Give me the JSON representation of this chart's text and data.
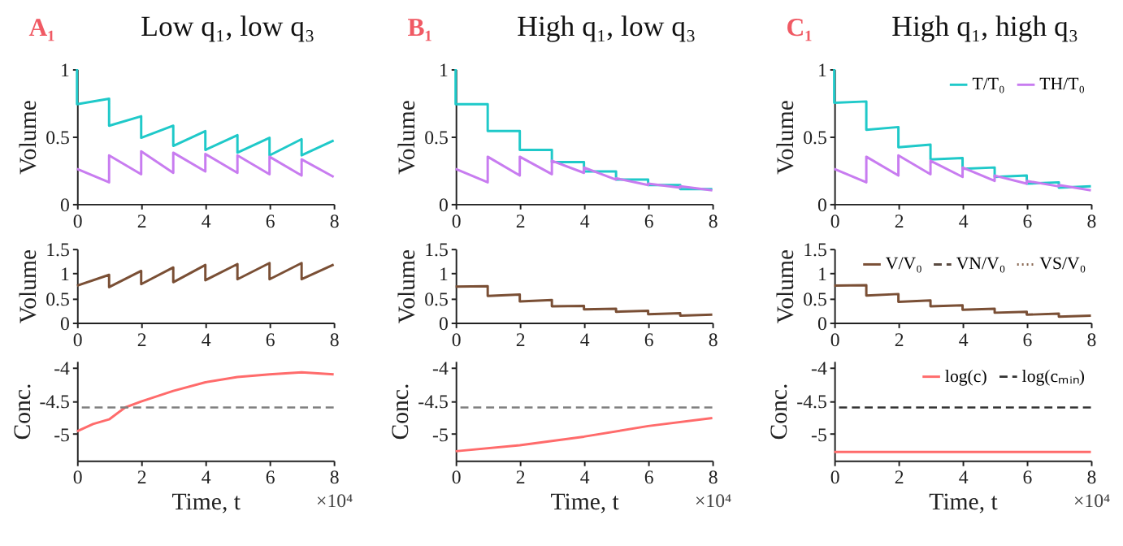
{
  "chart_data": [
    {
      "type": "line",
      "title": "Low q₁, low q₃",
      "annotations": [
        "A₁"
      ],
      "ylabel": "Volume",
      "xlim": [
        0,
        8
      ],
      "xticks": [
        0,
        2,
        4,
        6,
        8
      ],
      "ylim": [
        0,
        1
      ],
      "yticks": [
        0,
        0.5,
        1
      ],
      "grid": false,
      "legend": false,
      "series": [
        {
          "color": "#1fc9c9",
          "x": [
            0,
            0,
            1,
            1,
            2,
            2,
            3,
            3,
            4,
            4,
            5,
            5,
            6,
            6,
            7,
            7,
            8
          ],
          "values": [
            1,
            0.74,
            0.78,
            0.58,
            0.65,
            0.49,
            0.58,
            0.43,
            0.54,
            0.4,
            0.51,
            0.38,
            0.49,
            0.36,
            0.48,
            0.36,
            0.47
          ]
        },
        {
          "color": "#c87cf0",
          "x": [
            0,
            1,
            1,
            2,
            2,
            3,
            3,
            4,
            4,
            5,
            5,
            6,
            6,
            7,
            7,
            8
          ],
          "values": [
            0.26,
            0.16,
            0.36,
            0.22,
            0.39,
            0.23,
            0.38,
            0.24,
            0.37,
            0.23,
            0.36,
            0.22,
            0.35,
            0.21,
            0.33,
            0.2
          ]
        }
      ]
    },
    {
      "type": "line",
      "title": "High q₁, low q₃",
      "annotations": [
        "B₁"
      ],
      "ylabel": "Volume",
      "xlim": [
        0,
        8
      ],
      "xticks": [
        0,
        2,
        4,
        6,
        8
      ],
      "ylim": [
        0,
        1
      ],
      "yticks": [
        0,
        0.5,
        1
      ],
      "grid": false,
      "legend": false,
      "series": [
        {
          "color": "#1fc9c9",
          "x": [
            0,
            0,
            1,
            1,
            2,
            2,
            3,
            3,
            4,
            4,
            5,
            5,
            6,
            6,
            7,
            7,
            8
          ],
          "values": [
            1,
            0.74,
            0.74,
            0.54,
            0.54,
            0.4,
            0.4,
            0.31,
            0.31,
            0.24,
            0.24,
            0.18,
            0.18,
            0.14,
            0.14,
            0.11,
            0.11
          ]
        },
        {
          "color": "#c87cf0",
          "x": [
            0,
            1,
            1,
            2,
            2,
            3,
            3,
            4,
            4,
            5,
            5,
            6,
            6,
            7,
            7,
            8
          ],
          "values": [
            0.26,
            0.16,
            0.35,
            0.21,
            0.35,
            0.22,
            0.32,
            0.23,
            0.27,
            0.18,
            0.19,
            0.14,
            0.15,
            0.12,
            0.13,
            0.1
          ]
        }
      ]
    },
    {
      "type": "line",
      "title": "High q₁, high q₃",
      "annotations": [
        "C₁"
      ],
      "ylabel": "Volume",
      "xlim": [
        0,
        8
      ],
      "xticks": [
        0,
        2,
        4,
        6,
        8
      ],
      "ylim": [
        0,
        1
      ],
      "yticks": [
        0,
        0.5,
        1
      ],
      "grid": false,
      "legend": "top right",
      "series": [
        {
          "name": "T/T₀",
          "color": "#1fc9c9",
          "x": [
            0,
            0,
            1,
            1,
            2,
            2,
            3,
            3,
            4,
            4,
            5,
            5,
            6,
            6,
            7,
            7,
            8
          ],
          "values": [
            1,
            0.75,
            0.76,
            0.55,
            0.57,
            0.42,
            0.44,
            0.33,
            0.34,
            0.26,
            0.27,
            0.2,
            0.21,
            0.15,
            0.16,
            0.12,
            0.13
          ]
        },
        {
          "name": "TH/T₀",
          "color": "#c87cf0",
          "x": [
            0,
            1,
            1,
            2,
            2,
            3,
            3,
            4,
            4,
            5,
            5,
            6,
            6,
            7,
            7,
            8
          ],
          "values": [
            0.26,
            0.16,
            0.35,
            0.21,
            0.36,
            0.22,
            0.32,
            0.2,
            0.27,
            0.17,
            0.21,
            0.15,
            0.17,
            0.13,
            0.14,
            0.1
          ]
        }
      ]
    },
    {
      "type": "line",
      "ylabel": "Volume",
      "xlim": [
        0,
        8
      ],
      "xticks": [
        0,
        2,
        4,
        6,
        8
      ],
      "ylim": [
        0,
        1.5
      ],
      "yticks": [
        0,
        0.5,
        1,
        1.5
      ],
      "grid": false,
      "legend": false,
      "x": [
        0,
        1,
        1,
        2,
        2,
        3,
        3,
        4,
        4,
        5,
        5,
        6,
        6,
        7,
        7,
        8
      ],
      "series": [
        {
          "color": "#7a4f35",
          "values": [
            0.75,
            0.97,
            0.72,
            1.05,
            0.78,
            1.12,
            0.82,
            1.17,
            0.86,
            1.19,
            0.88,
            1.21,
            0.88,
            1.21,
            0.88,
            1.18
          ]
        }
      ]
    },
    {
      "type": "line",
      "ylabel": "Volume",
      "xlim": [
        0,
        8
      ],
      "xticks": [
        0,
        2,
        4,
        6,
        8
      ],
      "ylim": [
        0,
        1.5
      ],
      "yticks": [
        0,
        0.5,
        1,
        1.5
      ],
      "grid": false,
      "legend": false,
      "x": [
        0,
        1,
        1,
        2,
        2,
        3,
        3,
        4,
        4,
        5,
        5,
        6,
        6,
        7,
        7,
        8
      ],
      "series": [
        {
          "color": "#7a4f35",
          "values": [
            0.73,
            0.74,
            0.54,
            0.57,
            0.43,
            0.46,
            0.33,
            0.34,
            0.27,
            0.28,
            0.22,
            0.24,
            0.17,
            0.19,
            0.14,
            0.16
          ]
        }
      ]
    },
    {
      "type": "line",
      "ylabel": "Volume",
      "xlim": [
        0,
        8
      ],
      "xticks": [
        0,
        2,
        4,
        6,
        8
      ],
      "ylim": [
        0,
        1.5
      ],
      "yticks": [
        0,
        0.5,
        1,
        1.5
      ],
      "grid": false,
      "legend": "top right",
      "x": [
        0,
        1,
        1,
        2,
        2,
        3,
        3,
        4,
        4,
        5,
        5,
        6,
        6,
        7,
        7,
        8
      ],
      "series": [
        {
          "name": "V/V₀",
          "color": "#7a4f35",
          "values": [
            0.75,
            0.76,
            0.55,
            0.58,
            0.42,
            0.45,
            0.33,
            0.35,
            0.26,
            0.28,
            0.2,
            0.22,
            0.16,
            0.18,
            0.12,
            0.14
          ]
        },
        {
          "name": "VN/V₀",
          "color": "#5a4a40",
          "line_style": "dashed",
          "values": [
            null,
            null,
            null,
            null,
            null,
            null,
            null,
            null,
            null,
            null,
            null,
            null,
            null,
            null,
            null,
            null
          ]
        },
        {
          "name": "VS/V₀",
          "color": "#8a6a55",
          "line_style": "dotted",
          "values": [
            null,
            null,
            null,
            null,
            null,
            null,
            null,
            null,
            null,
            null,
            null,
            null,
            null,
            null,
            null,
            null
          ]
        }
      ]
    },
    {
      "type": "line",
      "ylabel": "Conc.",
      "xlabel": "Time, t",
      "annotations": [
        "×10⁴"
      ],
      "xlim": [
        0,
        8
      ],
      "xticks": [
        0,
        2,
        4,
        6,
        8
      ],
      "ylim": [
        -5.4,
        -3.9
      ],
      "yticks": [
        -5,
        -4.5,
        -4
      ],
      "grid": false,
      "legend": false,
      "ref_lines": [
        {
          "axis": "y",
          "value": -4.6,
          "color": "#808080",
          "line_style": "dashed"
        }
      ],
      "series": [
        {
          "color": "#ff6b6b",
          "x": [
            0,
            0.5,
            1,
            1.5,
            2,
            3,
            4,
            5,
            6,
            7,
            8
          ],
          "values": [
            -4.96,
            -4.85,
            -4.78,
            -4.6,
            -4.51,
            -4.35,
            -4.22,
            -4.14,
            -4.1,
            -4.07,
            -4.1
          ]
        }
      ]
    },
    {
      "type": "line",
      "ylabel": "Conc.",
      "xlabel": "Time, t",
      "annotations": [
        "×10⁴"
      ],
      "xlim": [
        0,
        8
      ],
      "xticks": [
        0,
        2,
        4,
        6,
        8
      ],
      "ylim": [
        -5.4,
        -3.9
      ],
      "yticks": [
        -5,
        -4.5,
        -4
      ],
      "grid": false,
      "legend": false,
      "ref_lines": [
        {
          "axis": "y",
          "value": -4.6,
          "color": "#808080",
          "line_style": "dashed"
        }
      ],
      "series": [
        {
          "color": "#ff6b6b",
          "x": [
            0,
            2,
            4,
            6,
            8
          ],
          "values": [
            -5.26,
            -5.17,
            -5.04,
            -4.88,
            -4.76
          ]
        }
      ]
    },
    {
      "type": "line",
      "ylabel": "Conc.",
      "xlabel": "Time, t",
      "annotations": [
        "×10⁴"
      ],
      "xlim": [
        0,
        8
      ],
      "xticks": [
        0,
        2,
        4,
        6,
        8
      ],
      "ylim": [
        -5.4,
        -3.9
      ],
      "yticks": [
        -5,
        -4.5,
        -4
      ],
      "grid": false,
      "legend": "top right",
      "ref_lines": [
        {
          "axis": "y",
          "value": -4.6,
          "color": "#333333",
          "line_style": "dashed",
          "label": "log(cₘᵢₙ)"
        }
      ],
      "series": [
        {
          "name": "log(c)",
          "color": "#ff6b6b",
          "x": [
            0,
            8
          ],
          "values": [
            -5.27,
            -5.27
          ]
        }
      ]
    }
  ]
}
